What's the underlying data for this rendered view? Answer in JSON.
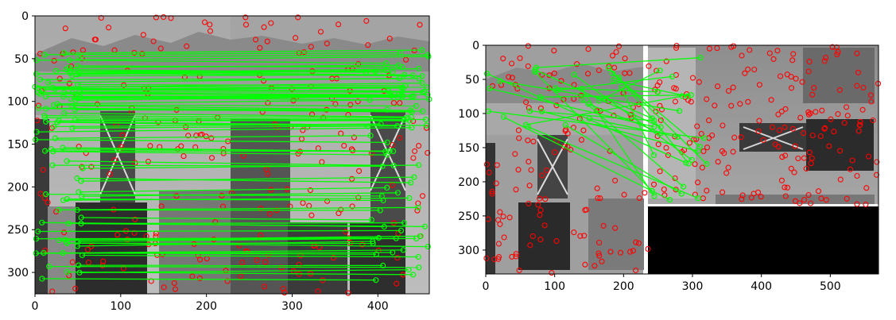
{
  "figure": {
    "panels": [
      {
        "id": "left",
        "description_type": "grayscale-image-with-feature-matches",
        "xlim": [
          0,
          460
        ],
        "ylim": [
          325,
          0
        ],
        "xticks": [
          0,
          100,
          200,
          300,
          400
        ],
        "yticks": [
          0,
          50,
          100,
          150,
          200,
          250,
          300
        ],
        "match_color": "#00ff00",
        "keypoint_color": "#ff0000"
      },
      {
        "id": "right",
        "description_type": "grayscale-image-with-feature-matches",
        "xlim": [
          0,
          570
        ],
        "ylim": [
          335,
          0
        ],
        "xticks": [
          0,
          100,
          200,
          300,
          400,
          500
        ],
        "yticks": [
          0,
          50,
          100,
          150,
          200,
          250,
          300
        ],
        "match_color": "#00ff00",
        "keypoint_color": "#ff0000"
      }
    ]
  }
}
